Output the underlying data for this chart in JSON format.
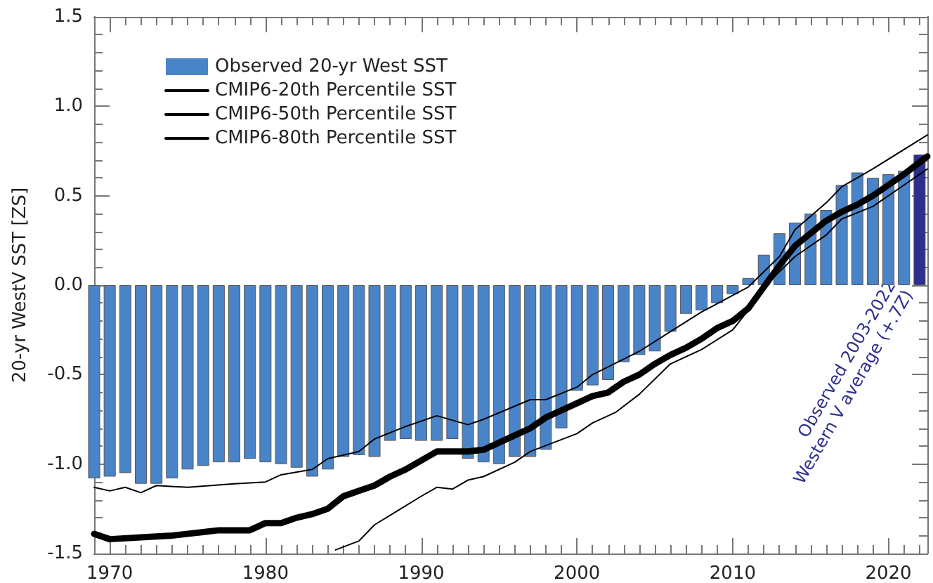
{
  "chart_data": {
    "type": "bar",
    "ylabel": "20-yr WestV SST [ZS]",
    "xlim": [
      1969,
      2022.5
    ],
    "xticks": [
      1970,
      1980,
      1990,
      2000,
      2010,
      2020
    ],
    "ylim": [
      -1.5,
      1.5
    ],
    "yticks": [
      {
        "value": -1.5,
        "label": "-1.5"
      },
      {
        "value": -1,
        "label": "-1.0"
      },
      {
        "value": -0.5,
        "label": "-0.5"
      },
      {
        "value": 0,
        "label": "0.0"
      },
      {
        "value": 0.5,
        "label": "0.5"
      },
      {
        "value": 1,
        "label": "1.0"
      },
      {
        "value": 1.5,
        "label": "1.5"
      }
    ],
    "grid": false,
    "legend": "top left",
    "marker": "none",
    "line_style": "solid",
    "annotations": [
      {
        "text": "Observed 2003-2022\nWestern V average (+.7Z)",
        "x": 2022,
        "y": 0
      }
    ],
    "series": [
      {
        "name": "Observed 20-yr West SST",
        "color": "#4a84c8",
        "x": [
          1969,
          1970,
          1971,
          1972,
          1973,
          1974,
          1975,
          1976,
          1977,
          1978,
          1979,
          1980,
          1981,
          1982,
          1983,
          1984,
          1985,
          1986,
          1987,
          1988,
          1989,
          1990,
          1991,
          1992,
          1993,
          1994,
          1995,
          1996,
          1997,
          1998,
          1999,
          2000,
          2001,
          2002,
          2003,
          2004,
          2005,
          2006,
          2007,
          2008,
          2009,
          2010,
          2011,
          2012,
          2013,
          2014,
          2015,
          2016,
          2017,
          2018,
          2019,
          2020,
          2021,
          2022
        ],
        "values": [
          -1.08,
          -1.07,
          -1.05,
          -1.11,
          -1.11,
          -1.08,
          -1.03,
          -1.01,
          -0.99,
          -0.99,
          -0.97,
          -0.99,
          -1.0,
          -1.02,
          -1.07,
          -1.03,
          -0.96,
          -0.95,
          -0.96,
          -0.87,
          -0.86,
          -0.87,
          -0.87,
          -0.86,
          -0.97,
          -0.99,
          -1.0,
          -0.96,
          -0.96,
          -0.92,
          -0.8,
          -0.59,
          -0.56,
          -0.53,
          -0.43,
          -0.39,
          -0.37,
          -0.26,
          -0.16,
          -0.14,
          -0.1,
          -0.05,
          0.04,
          0.17,
          0.29,
          0.35,
          0.4,
          0.42,
          0.56,
          0.63,
          0.6,
          0.62,
          0.64,
          0.73
        ],
        "colors": [
          "#4a84c8",
          "#4a84c8",
          "#4a84c8",
          "#4a84c8",
          "#4a84c8",
          "#4a84c8",
          "#4a84c8",
          "#4a84c8",
          "#4a84c8",
          "#4a84c8",
          "#4a84c8",
          "#4a84c8",
          "#4a84c8",
          "#4a84c8",
          "#4a84c8",
          "#4a84c8",
          "#4a84c8",
          "#4a84c8",
          "#4a84c8",
          "#4a84c8",
          "#4a84c8",
          "#4a84c8",
          "#4a84c8",
          "#4a84c8",
          "#4a84c8",
          "#4a84c8",
          "#4a84c8",
          "#4a84c8",
          "#4a84c8",
          "#4a84c8",
          "#4a84c8",
          "#4a84c8",
          "#4a84c8",
          "#4a84c8",
          "#4a84c8",
          "#4a84c8",
          "#4a84c8",
          "#4a84c8",
          "#4a84c8",
          "#4a84c8",
          "#4a84c8",
          "#4a84c8",
          "#4a84c8",
          "#4a84c8",
          "#4a84c8",
          "#4a84c8",
          "#4a84c8",
          "#4a84c8",
          "#4a84c8",
          "#4a84c8",
          "#4a84c8",
          "#4a84c8",
          "#4a84c8",
          "#2b2f8f"
        ]
      },
      {
        "name": "CMIP6-20th Percentile SST",
        "type": "line",
        "color": "#000000",
        "x": [
          1984.5,
          1986,
          1987,
          1988.5,
          1990,
          1991,
          1992,
          1993,
          1994,
          1996,
          1997,
          2000,
          2001,
          2002.5,
          2004,
          2006,
          2008,
          2010,
          2011,
          2012,
          2014,
          2016,
          2017,
          2019,
          2022.5
        ],
        "values": [
          -1.48,
          -1.43,
          -1.34,
          -1.26,
          -1.18,
          -1.13,
          -1.14,
          -1.09,
          -1.07,
          -0.99,
          -0.93,
          -0.83,
          -0.77,
          -0.71,
          -0.61,
          -0.44,
          -0.36,
          -0.25,
          -0.14,
          -0.01,
          0.16,
          0.28,
          0.37,
          0.44,
          0.65
        ]
      },
      {
        "name": "CMIP6-50th Percentile SST",
        "type": "line",
        "color": "#000000",
        "x": [
          1969,
          1970,
          1972,
          1974,
          1976,
          1977,
          1979,
          1980,
          1981,
          1982,
          1983,
          1984,
          1985,
          1986,
          1987,
          1988,
          1989,
          1990,
          1991,
          1992,
          1993,
          1994,
          1995,
          1996,
          1997,
          1998,
          1999,
          2000,
          2001,
          2002,
          2003,
          2004,
          2005,
          2006,
          2007,
          2008,
          2009,
          2010,
          2011,
          2012,
          2013,
          2014,
          2015,
          2016,
          2017,
          2018,
          2019,
          2020,
          2021,
          2022.5
        ],
        "values": [
          -1.39,
          -1.42,
          -1.41,
          -1.4,
          -1.38,
          -1.37,
          -1.37,
          -1.33,
          -1.33,
          -1.3,
          -1.28,
          -1.25,
          -1.18,
          -1.15,
          -1.12,
          -1.07,
          -1.03,
          -0.98,
          -0.93,
          -0.93,
          -0.93,
          -0.92,
          -0.88,
          -0.84,
          -0.8,
          -0.74,
          -0.7,
          -0.66,
          -0.62,
          -0.6,
          -0.54,
          -0.5,
          -0.44,
          -0.39,
          -0.35,
          -0.3,
          -0.24,
          -0.2,
          -0.13,
          -0.01,
          0.11,
          0.22,
          0.29,
          0.36,
          0.41,
          0.45,
          0.5,
          0.56,
          0.62,
          0.72
        ]
      },
      {
        "name": "CMIP6-80th Percentile SST",
        "type": "line",
        "color": "#000000",
        "x": [
          1969,
          1970,
          1971,
          1972,
          1973,
          1975,
          1978,
          1980,
          1981,
          1983,
          1984,
          1986,
          1987,
          1989,
          1991,
          1993,
          1994,
          1997,
          1998,
          2000,
          2001,
          2004,
          2006,
          2008,
          2011,
          2013,
          2014,
          2016,
          2017,
          2019,
          2022.5
        ],
        "values": [
          -1.13,
          -1.15,
          -1.13,
          -1.16,
          -1.12,
          -1.13,
          -1.11,
          -1.1,
          -1.06,
          -1.03,
          -0.97,
          -0.93,
          -0.86,
          -0.79,
          -0.73,
          -0.78,
          -0.75,
          -0.64,
          -0.64,
          -0.57,
          -0.5,
          -0.37,
          -0.26,
          -0.15,
          -0.01,
          0.16,
          0.31,
          0.46,
          0.55,
          0.65,
          0.84
        ]
      }
    ]
  }
}
